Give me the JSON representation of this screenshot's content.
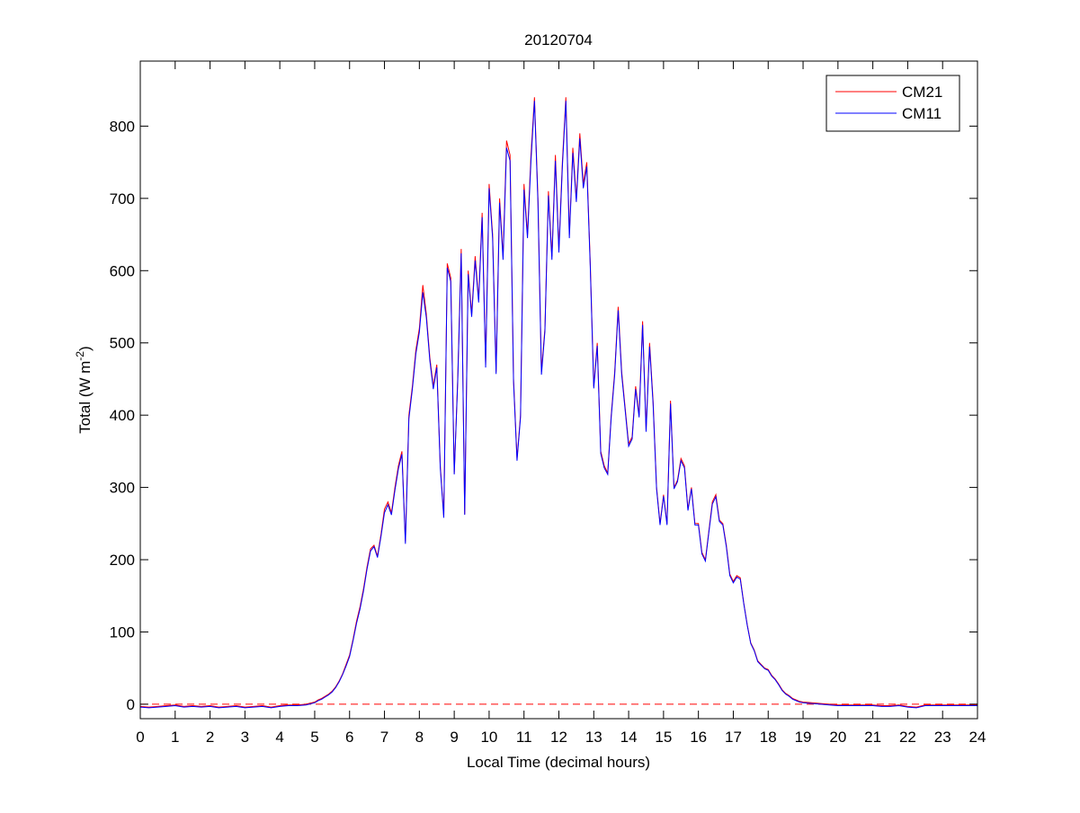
{
  "chart_data": {
    "type": "line",
    "title": "20120704",
    "xlabel": "Local Time (decimal hours)",
    "ylabel": {
      "text": "Total (W m",
      "superscript": "-2",
      "suffix": ")"
    },
    "xlim": [
      0,
      24
    ],
    "ylim": [
      -20,
      890
    ],
    "xticks": [
      0,
      1,
      2,
      3,
      4,
      5,
      6,
      7,
      8,
      9,
      10,
      11,
      12,
      13,
      14,
      15,
      16,
      17,
      18,
      19,
      20,
      21,
      22,
      23,
      24
    ],
    "yticks": [
      0,
      100,
      200,
      300,
      400,
      500,
      600,
      700,
      800
    ],
    "legend": "top-right",
    "reference_line": {
      "value": 0,
      "color": "#ff0000",
      "style": "dashed"
    },
    "x": [
      0,
      0.25,
      0.5,
      0.75,
      1,
      1.25,
      1.5,
      1.75,
      2,
      2.25,
      2.5,
      2.75,
      3,
      3.25,
      3.5,
      3.75,
      4,
      4.25,
      4.5,
      4.75,
      5,
      5.1,
      5.2,
      5.3,
      5.4,
      5.5,
      5.6,
      5.7,
      5.8,
      5.9,
      6,
      6.1,
      6.2,
      6.3,
      6.4,
      6.5,
      6.6,
      6.7,
      6.8,
      6.9,
      7,
      7.1,
      7.2,
      7.3,
      7.4,
      7.5,
      7.6,
      7.7,
      7.8,
      7.9,
      8,
      8.1,
      8.2,
      8.3,
      8.4,
      8.5,
      8.6,
      8.7,
      8.8,
      8.9,
      9,
      9.1,
      9.2,
      9.3,
      9.4,
      9.5,
      9.6,
      9.7,
      9.8,
      9.9,
      10,
      10.1,
      10.2,
      10.3,
      10.4,
      10.5,
      10.6,
      10.7,
      10.8,
      10.9,
      11,
      11.1,
      11.2,
      11.3,
      11.4,
      11.5,
      11.6,
      11.7,
      11.8,
      11.9,
      12,
      12.1,
      12.2,
      12.3,
      12.4,
      12.5,
      12.6,
      12.7,
      12.8,
      12.9,
      13,
      13.1,
      13.2,
      13.3,
      13.4,
      13.5,
      13.6,
      13.7,
      13.8,
      13.9,
      14,
      14.1,
      14.2,
      14.3,
      14.4,
      14.5,
      14.6,
      14.7,
      14.8,
      14.9,
      15,
      15.1,
      15.2,
      15.3,
      15.4,
      15.5,
      15.6,
      15.7,
      15.8,
      15.9,
      16,
      16.1,
      16.2,
      16.3,
      16.4,
      16.5,
      16.6,
      16.7,
      16.8,
      16.9,
      17,
      17.1,
      17.2,
      17.3,
      17.4,
      17.5,
      17.6,
      17.7,
      17.8,
      17.9,
      18,
      18.1,
      18.2,
      18.3,
      18.4,
      18.5,
      18.6,
      18.7,
      18.8,
      18.9,
      19,
      19.25,
      19.5,
      19.75,
      20,
      20.25,
      20.5,
      20.75,
      21,
      21.25,
      21.5,
      21.75,
      22,
      22.25,
      22.5,
      22.75,
      23,
      23.25,
      23.5,
      23.75,
      24
    ],
    "series": [
      {
        "name": "CM21",
        "color": "#ff0000",
        "values": [
          -3,
          -4,
          -3,
          -2,
          -1,
          -3,
          -2,
          -3,
          -2,
          -4,
          -3,
          -2,
          -4,
          -3,
          -2,
          -4,
          -2,
          -1,
          -1,
          0,
          3,
          6,
          8,
          11,
          14,
          18,
          24,
          32,
          42,
          55,
          68,
          90,
          115,
          135,
          160,
          190,
          215,
          220,
          205,
          235,
          270,
          280,
          265,
          300,
          330,
          350,
          225,
          400,
          440,
          490,
          520,
          580,
          540,
          480,
          440,
          470,
          330,
          260,
          610,
          590,
          320,
          450,
          630,
          263,
          600,
          540,
          620,
          560,
          680,
          470,
          720,
          650,
          460,
          700,
          620,
          780,
          760,
          450,
          340,
          400,
          720,
          650,
          760,
          840,
          700,
          460,
          520,
          710,
          620,
          760,
          630,
          750,
          840,
          650,
          770,
          700,
          790,
          720,
          750,
          610,
          440,
          500,
          350,
          330,
          320,
          400,
          460,
          550,
          460,
          410,
          360,
          370,
          440,
          400,
          530,
          380,
          500,
          420,
          300,
          250,
          290,
          250,
          420,
          300,
          310,
          340,
          330,
          270,
          300,
          250,
          250,
          210,
          200,
          240,
          280,
          290,
          255,
          250,
          220,
          180,
          170,
          178,
          175,
          140,
          110,
          85,
          75,
          60,
          55,
          50,
          48,
          40,
          35,
          28,
          20,
          15,
          12,
          8,
          6,
          4,
          3,
          2,
          1,
          0,
          -1,
          -1,
          -1,
          -1,
          -1,
          -2,
          -2,
          -1,
          -3,
          -4,
          -1,
          -1,
          -1,
          -1,
          -1,
          -1,
          -1
        ]
      },
      {
        "name": "CM11",
        "color": "#0000ff",
        "values": [
          -4,
          -5,
          -4,
          -3,
          -2,
          -4,
          -3,
          -4,
          -3,
          -5,
          -4,
          -3,
          -5,
          -4,
          -3,
          -5,
          -3,
          -2,
          -2,
          -1,
          2,
          5,
          7,
          10,
          13,
          17,
          23,
          31,
          41,
          53,
          66,
          88,
          112,
          132,
          157,
          187,
          212,
          218,
          203,
          232,
          265,
          276,
          262,
          296,
          326,
          346,
          222,
          395,
          436,
          485,
          515,
          570,
          535,
          476,
          436,
          466,
          327,
          258,
          604,
          585,
          318,
          446,
          624,
          262,
          595,
          536,
          614,
          556,
          674,
          466,
          714,
          645,
          457,
          694,
          615,
          770,
          752,
          446,
          337,
          397,
          712,
          645,
          752,
          835,
          694,
          456,
          516,
          704,
          615,
          752,
          625,
          744,
          835,
          645,
          763,
          695,
          783,
          714,
          744,
          605,
          437,
          496,
          347,
          327,
          318,
          397,
          456,
          545,
          456,
          407,
          357,
          367,
          436,
          397,
          525,
          377,
          495,
          416,
          298,
          248,
          288,
          248,
          416,
          298,
          308,
          337,
          327,
          268,
          298,
          248,
          248,
          208,
          198,
          238,
          277,
          287,
          253,
          248,
          218,
          178,
          168,
          176,
          173,
          139,
          109,
          84,
          74,
          59,
          54,
          49,
          47,
          39,
          34,
          27,
          19,
          14,
          11,
          7,
          5,
          3,
          2,
          1,
          0,
          -1,
          -2,
          -2,
          -2,
          -2,
          -2,
          -3,
          -3,
          -2,
          -4,
          -5,
          -2,
          -2,
          -2,
          -2,
          -2,
          -2,
          -2
        ]
      }
    ]
  }
}
